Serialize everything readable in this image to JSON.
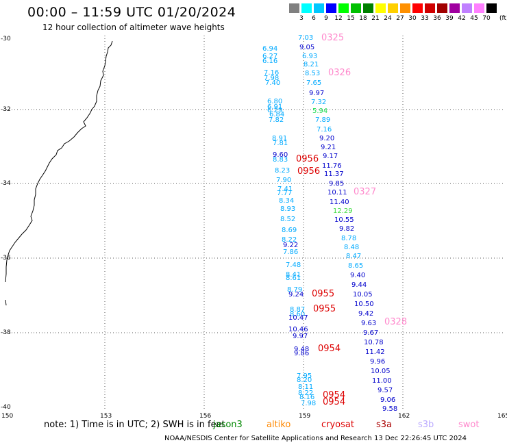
{
  "title": "00:00 – 11:59 UTC 01/20/2024",
  "subtitle": "12 hour collection of altimeter wave heights",
  "colorbar": {
    "labels": [
      "3",
      "6",
      "9",
      "12",
      "15",
      "18",
      "21",
      "24",
      "27",
      "30",
      "33",
      "36",
      "39",
      "42",
      "45",
      "70"
    ],
    "unit": "(ft)",
    "colors": [
      "#808080",
      "#00ffff",
      "#00c8ff",
      "#0000ff",
      "#00ff00",
      "#00c000",
      "#008000",
      "#ffff00",
      "#ffd000",
      "#ff9000",
      "#ff0000",
      "#d00000",
      "#a00000",
      "#a000a0",
      "#c080ff",
      "#ff80ff",
      "#000000"
    ]
  },
  "axes": {
    "lat_labels": [
      "-30",
      "-32",
      "-34",
      "-36",
      "-38",
      "-40"
    ],
    "lon_labels": [
      "150",
      "153",
      "156",
      "159",
      "162",
      "165"
    ]
  },
  "observations": [
    {
      "v": "7.03",
      "c": "#00aaff"
    },
    {
      "v": "9.05",
      "c": "#0000cc"
    },
    {
      "v": "6.94",
      "c": "#00aaff"
    },
    {
      "v": "6.27",
      "c": "#00aaff"
    },
    {
      "v": "6.93",
      "c": "#00aaff"
    },
    {
      "v": "6.16",
      "c": "#00aaff"
    },
    {
      "v": "8.21",
      "c": "#00aaff"
    },
    {
      "v": "7.16",
      "c": "#00aaff"
    },
    {
      "v": "8.53",
      "c": "#00aaff"
    },
    {
      "v": "7.98",
      "c": "#00aaff"
    },
    {
      "v": "7.40",
      "c": "#00aaff"
    },
    {
      "v": "7.65",
      "c": "#00aaff"
    },
    {
      "v": "9.97",
      "c": "#0000cc"
    },
    {
      "v": "6.80",
      "c": "#00aaff"
    },
    {
      "v": "7.32",
      "c": "#00aaff"
    },
    {
      "v": "6.91",
      "c": "#00aaff"
    },
    {
      "v": "6.29",
      "c": "#00aaff"
    },
    {
      "v": "5.94",
      "c": "#22dd55"
    },
    {
      "v": "6.84",
      "c": "#00aaff"
    },
    {
      "v": "7.82",
      "c": "#00aaff"
    },
    {
      "v": "7.89",
      "c": "#00aaff"
    },
    {
      "v": "7.16",
      "c": "#00aaff"
    },
    {
      "v": "8.91",
      "c": "#00aaff"
    },
    {
      "v": "9.20",
      "c": "#0000cc"
    },
    {
      "v": "7.81",
      "c": "#00aaff"
    },
    {
      "v": "9.21",
      "c": "#0000cc"
    },
    {
      "v": "9.60",
      "c": "#0000cc"
    },
    {
      "v": "9.17",
      "c": "#0000cc"
    },
    {
      "v": "8.83",
      "c": "#00aaff"
    },
    {
      "v": "11.76",
      "c": "#0000cc"
    },
    {
      "v": "8.23",
      "c": "#00aaff"
    },
    {
      "v": "11.37",
      "c": "#0000cc"
    },
    {
      "v": "7.90",
      "c": "#00aaff"
    },
    {
      "v": "9.85",
      "c": "#0000cc"
    },
    {
      "v": "7.41",
      "c": "#00aaff"
    },
    {
      "v": "7.77",
      "c": "#00aaff"
    },
    {
      "v": "10.11",
      "c": "#0000cc"
    },
    {
      "v": "8.34",
      "c": "#00aaff"
    },
    {
      "v": "11.40",
      "c": "#0000cc"
    },
    {
      "v": "8.93",
      "c": "#00aaff"
    },
    {
      "v": "12.29",
      "c": "#44dd44"
    },
    {
      "v": "8.52",
      "c": "#00aaff"
    },
    {
      "v": "10.55",
      "c": "#0000cc"
    },
    {
      "v": "8.69",
      "c": "#00aaff"
    },
    {
      "v": "9.82",
      "c": "#0000cc"
    },
    {
      "v": "8.22",
      "c": "#00aaff"
    },
    {
      "v": "8.78",
      "c": "#00aaff"
    },
    {
      "v": "9.22",
      "c": "#0000cc"
    },
    {
      "v": "8.48",
      "c": "#00aaff"
    },
    {
      "v": "7.86",
      "c": "#00aaff"
    },
    {
      "v": "8.47",
      "c": "#00aaff"
    },
    {
      "v": "7.48",
      "c": "#00aaff"
    },
    {
      "v": "8.65",
      "c": "#00aaff"
    },
    {
      "v": "8.41",
      "c": "#00aaff"
    },
    {
      "v": "9.40",
      "c": "#0000cc"
    },
    {
      "v": "8.61",
      "c": "#00aaff"
    },
    {
      "v": "9.44",
      "c": "#0000cc"
    },
    {
      "v": "8.79",
      "c": "#00aaff"
    },
    {
      "v": "10.05",
      "c": "#0000cc"
    },
    {
      "v": "9.24",
      "c": "#0000cc"
    },
    {
      "v": "10.50",
      "c": "#0000cc"
    },
    {
      "v": "8.87",
      "c": "#00aaff"
    },
    {
      "v": "9.42",
      "c": "#0000cc"
    },
    {
      "v": "8.60",
      "c": "#00aaff"
    },
    {
      "v": "10.47",
      "c": "#0000cc"
    },
    {
      "v": "9.63",
      "c": "#0000cc"
    },
    {
      "v": "10.46",
      "c": "#0000cc"
    },
    {
      "v": "9.67",
      "c": "#0000cc"
    },
    {
      "v": "9.97",
      "c": "#0000cc"
    },
    {
      "v": "10.78",
      "c": "#0000cc"
    },
    {
      "v": "9.48",
      "c": "#0000cc"
    },
    {
      "v": "11.42",
      "c": "#0000cc"
    },
    {
      "v": "9.86",
      "c": "#0000cc"
    },
    {
      "v": "9.96",
      "c": "#0000cc"
    },
    {
      "v": "10.05",
      "c": "#0000cc"
    },
    {
      "v": "7.95",
      "c": "#00aaff"
    },
    {
      "v": "8.20",
      "c": "#00aaff"
    },
    {
      "v": "11.00",
      "c": "#0000cc"
    },
    {
      "v": "8.11",
      "c": "#00aaff"
    },
    {
      "v": "9.57",
      "c": "#0000cc"
    },
    {
      "v": "8.22",
      "c": "#00aaff"
    },
    {
      "v": "8.16",
      "c": "#00aaff"
    },
    {
      "v": "9.06",
      "c": "#0000cc"
    },
    {
      "v": "7.98",
      "c": "#00aaff"
    },
    {
      "v": "9.58",
      "c": "#0000cc"
    }
  ],
  "passes": [
    {
      "t": "0325",
      "c": "#ff88cc"
    },
    {
      "t": "0326",
      "c": "#ff88cc"
    },
    {
      "t": "0956",
      "c": "#dd0000"
    },
    {
      "t": "0956",
      "c": "#dd0000"
    },
    {
      "t": "0327",
      "c": "#ff88cc"
    },
    {
      "t": "0955",
      "c": "#dd0000"
    },
    {
      "t": "0955",
      "c": "#dd0000"
    },
    {
      "t": "0328",
      "c": "#ff88cc"
    },
    {
      "t": "0954",
      "c": "#dd0000"
    },
    {
      "t": "0954",
      "c": "#dd0000"
    },
    {
      "t": "0954",
      "c": "#dd0000"
    }
  ],
  "note": "note:  1) Time is in UTC;  2) SWH is in feet",
  "satellites": [
    {
      "name": "jason3",
      "color": "#008800"
    },
    {
      "name": "altiko",
      "color": "#ff8800"
    },
    {
      "name": "cryosat",
      "color": "#dd0000"
    },
    {
      "name": "s3a",
      "color": "#aa0000"
    },
    {
      "name": "s3b",
      "color": "#bbaaff"
    },
    {
      "name": "swot",
      "color": "#ff88cc"
    }
  ],
  "credit": "NOAA/NESDIS Center for Satellite Applications and Research     13 Dec 22:26:45 UTC 2024"
}
